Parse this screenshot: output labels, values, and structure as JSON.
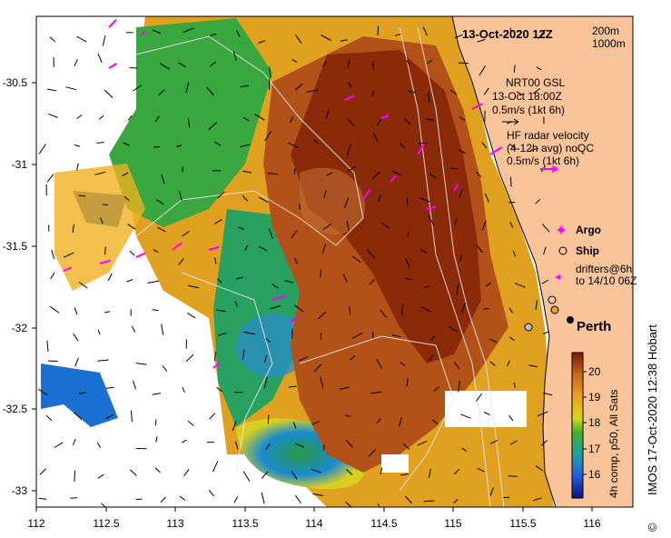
{
  "title": "13-Oct-2020 12Z",
  "isobaths": [
    "200m",
    "1000m"
  ],
  "gsl": {
    "line1": "NRT00 GSL",
    "line2": "13-Oct 18:00Z",
    "scale": "0.5m/s (1kt 6h)"
  },
  "radar": {
    "line1": "HF radar velocity",
    "line2": "(4-12h avg) noQC",
    "scale": "0.5m/s (1kt 6h)"
  },
  "legend": {
    "argo": "Argo",
    "ship": "Ship",
    "drifters_line1": "drifters@6h",
    "drifters_line2": "to 14/10 06Z"
  },
  "city": "Perth",
  "colorbar": {
    "ticks": [
      "20",
      "19",
      "18",
      "17",
      "16"
    ],
    "label": "4h comp, p50, All Sats"
  },
  "credit": "IMOS 17-Oct-2020 12:38 Hobart",
  "copyright_symbol": "©",
  "axes": {
    "x_ticks": [
      "112",
      "112.5",
      "113",
      "113.5",
      "114",
      "114.5",
      "115",
      "115.5",
      "116"
    ],
    "y_ticks": [
      "-30.5",
      "-31",
      "-31.5",
      "-32",
      "-32.5",
      "-33"
    ]
  },
  "colors": {
    "land": "#f9c49a",
    "warm": "#8a2a08",
    "mid": "#c8661a",
    "cool": "#2aa630",
    "cold": "#1a6fd0",
    "radar_arrow": "#ff00ff"
  }
}
